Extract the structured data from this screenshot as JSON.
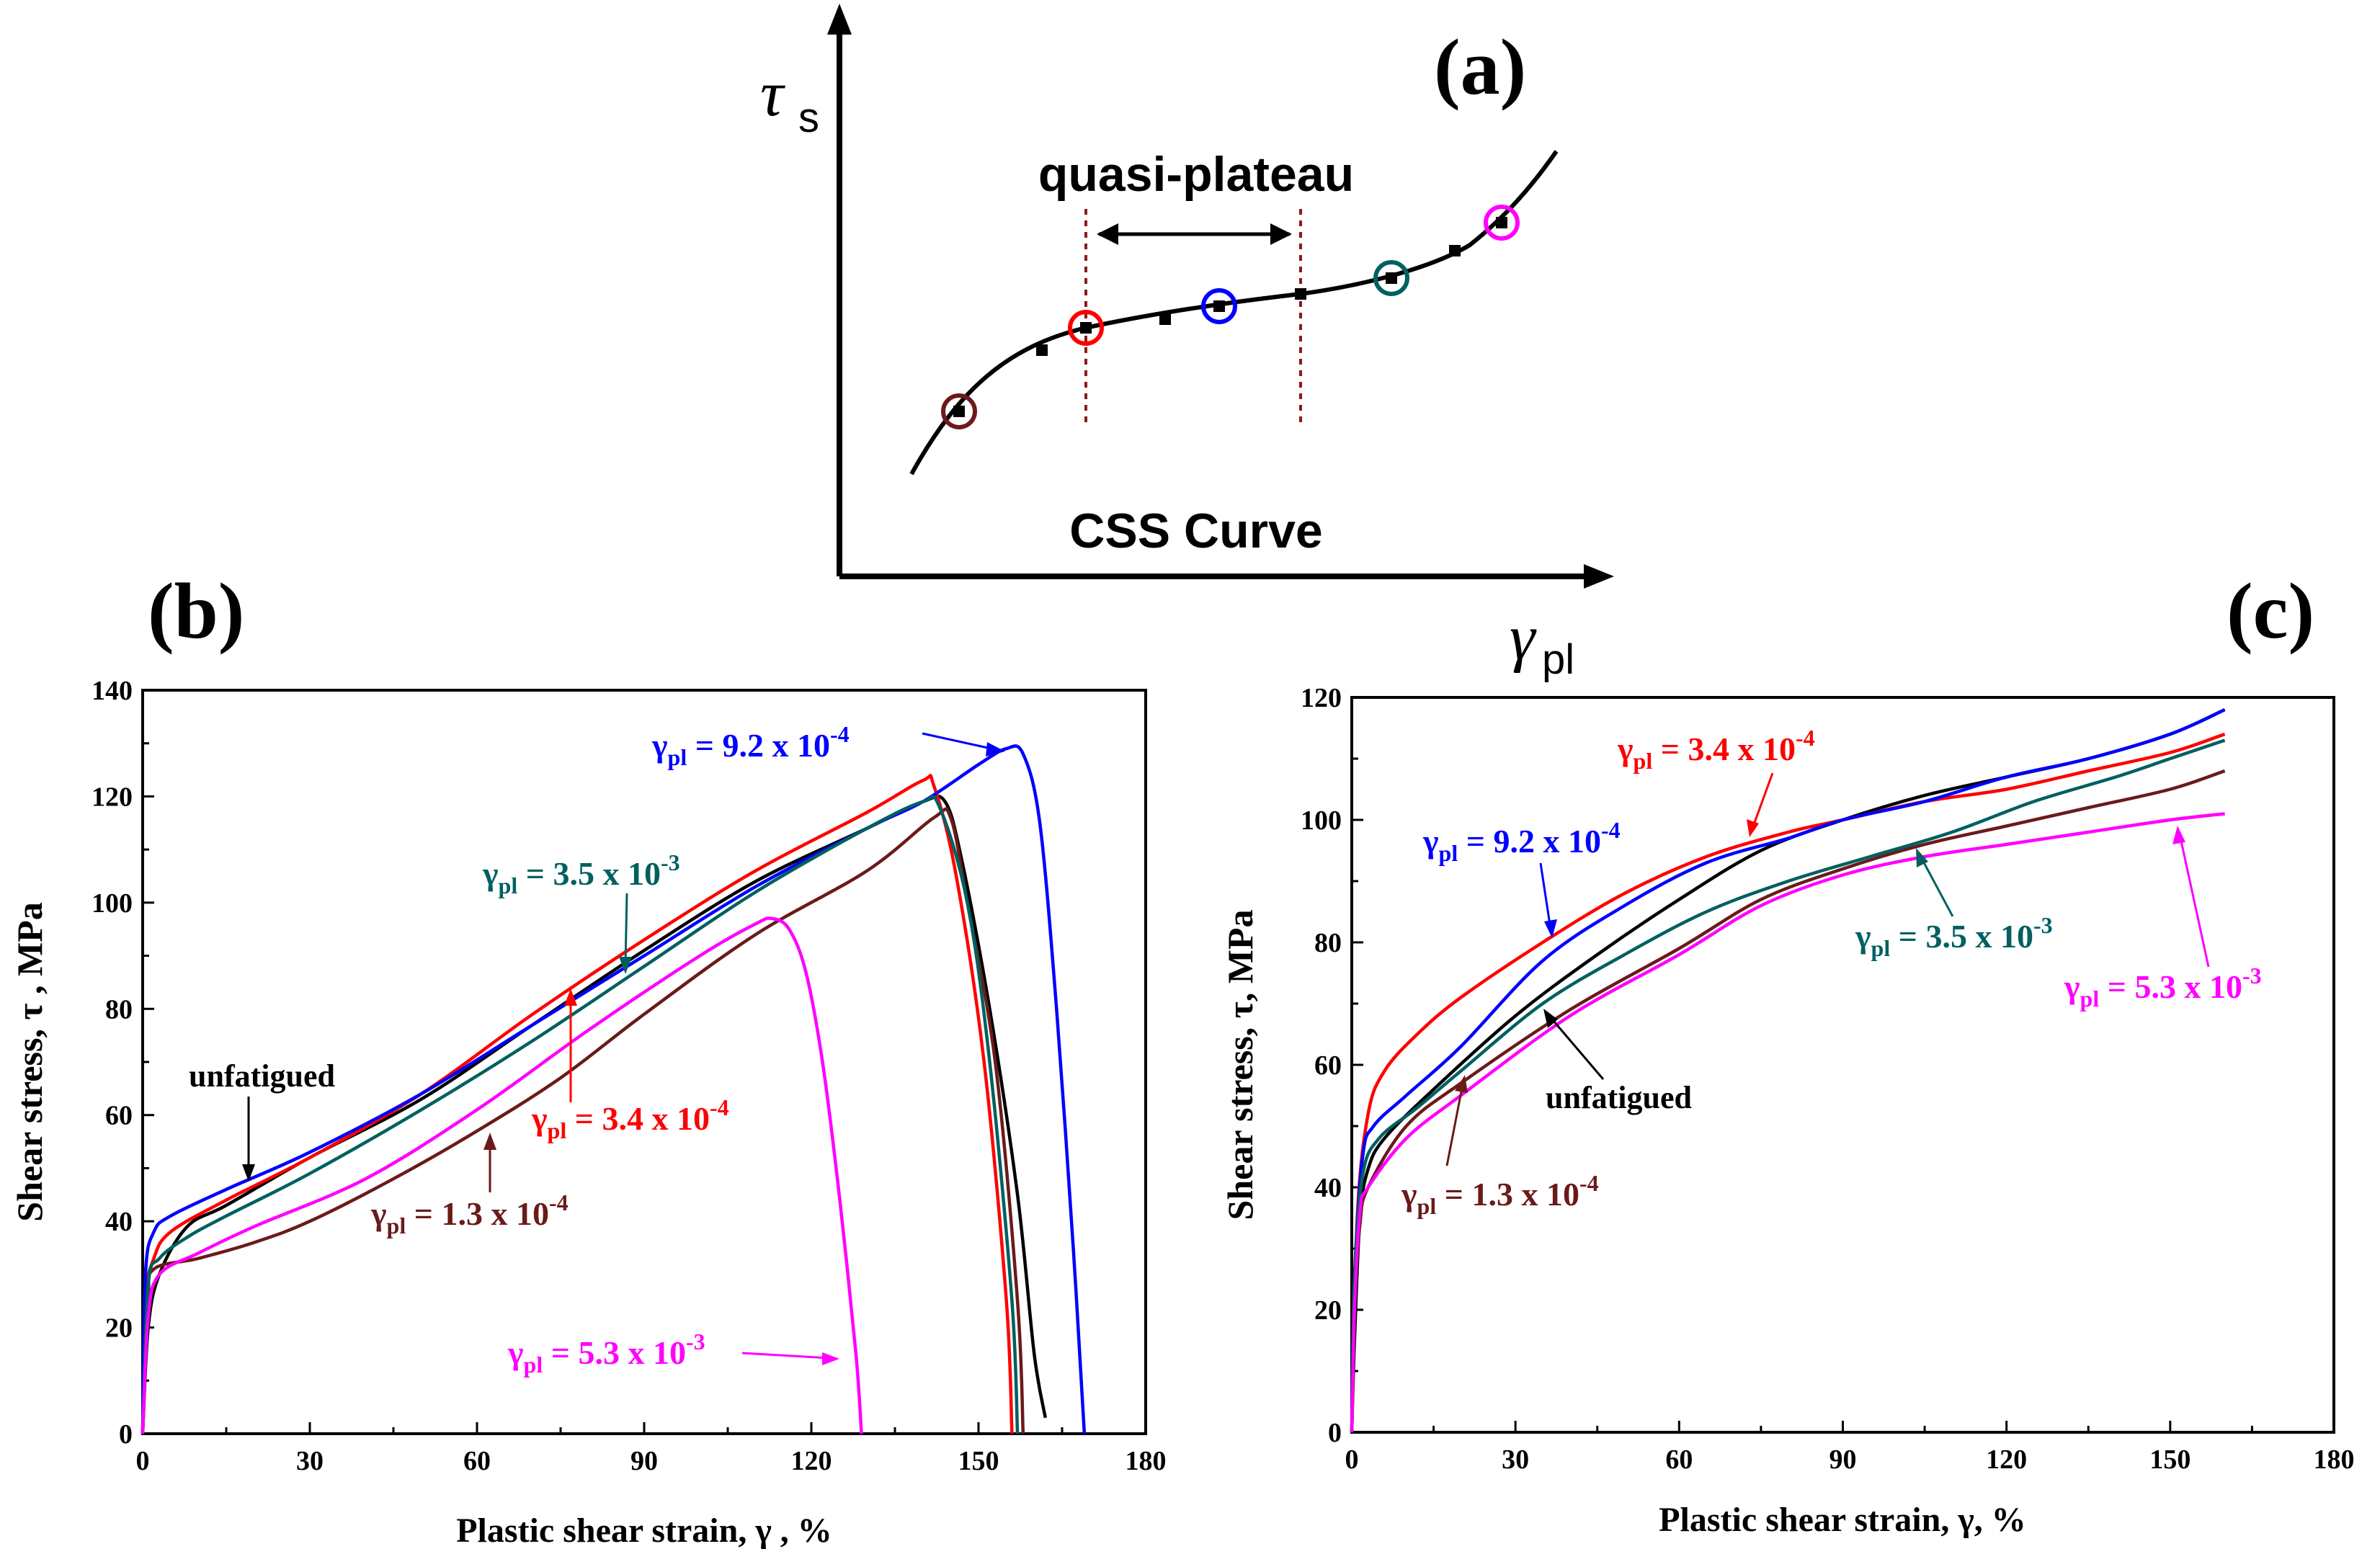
{
  "colors": {
    "unfatigued": "#000000",
    "g13e4": "#6b1a1a",
    "g34e4": "#ff0000",
    "g92e4": "#0000ff",
    "g35e3": "#006060",
    "g53e3": "#ff00ff"
  },
  "panel_a": {
    "label": "(a)",
    "y_symbol": "τ",
    "y_sub": "s",
    "x_symbol": "γ",
    "x_sub": "pl",
    "plateau_label": "quasi-plateau",
    "curve_label": "CSS Curve",
    "circle_colors": [
      "#6b1a1a",
      "#ff0000",
      "#0000ff",
      "#006060",
      "#ff00ff"
    ]
  },
  "panel_b": {
    "label": "(b)",
    "xlabel": "Plastic shear strain, γ , %",
    "ylabel": "Shear stress, τ , MPa",
    "annotations": {
      "g92e4": {
        "base": "9.2 x 10",
        "exp": "-4"
      },
      "g35e3": {
        "base": "3.5 x 10",
        "exp": "-3"
      },
      "g34e4": {
        "base": "3.4 x 10",
        "exp": "-4"
      },
      "g13e4": {
        "base": "1.3 x 10",
        "exp": "-4"
      },
      "g53e3": {
        "base": "5.3 x 10",
        "exp": "-3"
      },
      "unfatigued": "unfatigued"
    }
  },
  "panel_c": {
    "label": "(c)",
    "xlabel": "Plastic shear strain, γ, %",
    "ylabel": "Shear stress, τ, MPa",
    "annotations": {
      "g34e4": {
        "base": "3.4 x 10",
        "exp": "-4"
      },
      "g92e4": {
        "base": "9.2 x 10",
        "exp": "-4"
      },
      "g35e3": {
        "base": "3.5 x 10",
        "exp": "-3"
      },
      "g53e3": {
        "base": "5.3 x 10",
        "exp": "-3"
      },
      "g13e4": {
        "base": "1.3 x 10",
        "exp": "-4"
      },
      "unfatigued": "unfatigued"
    }
  },
  "chart_data": [
    {
      "type": "line",
      "panel": "(b)",
      "xlabel": "Plastic shear strain, γ , %",
      "ylabel": "Shear stress, τ , MPa",
      "xlim": [
        0,
        180
      ],
      "ylim": [
        0,
        140
      ],
      "xticks": [
        0,
        30,
        60,
        90,
        120,
        150,
        180
      ],
      "yticks": [
        0,
        20,
        40,
        60,
        80,
        100,
        120,
        140
      ],
      "series": [
        {
          "name": "unfatigued",
          "color": "#000000",
          "points": [
            [
              0,
              0
            ],
            [
              1,
              20
            ],
            [
              3,
              30
            ],
            [
              8,
              39
            ],
            [
              15,
              43
            ],
            [
              30,
              52
            ],
            [
              50,
              63
            ],
            [
              70,
              77
            ],
            [
              90,
              91
            ],
            [
              110,
              104
            ],
            [
              130,
              114
            ],
            [
              140,
              119
            ],
            [
              144,
              119
            ],
            [
              147,
              108
            ],
            [
              152,
              80
            ],
            [
              157,
              45
            ],
            [
              160,
              15
            ],
            [
              162,
              3
            ]
          ]
        },
        {
          "name": "γpl = 1.3 x 10-4",
          "color": "#6b1a1a",
          "points": [
            [
              0,
              0
            ],
            [
              1,
              25
            ],
            [
              2,
              31
            ],
            [
              10,
              33
            ],
            [
              20,
              36
            ],
            [
              30,
              40
            ],
            [
              45,
              48
            ],
            [
              60,
              57
            ],
            [
              75,
              67
            ],
            [
              90,
              79
            ],
            [
              110,
              94
            ],
            [
              130,
              106
            ],
            [
              142,
              116
            ],
            [
              145,
              116
            ],
            [
              148,
              100
            ],
            [
              153,
              70
            ],
            [
              157,
              25
            ],
            [
              158,
              0
            ]
          ]
        },
        {
          "name": "γpl = 3.4 x 10-4",
          "color": "#ff0000",
          "points": [
            [
              0,
              0
            ],
            [
              0.5,
              25
            ],
            [
              2,
              33
            ],
            [
              5,
              38
            ],
            [
              15,
              44
            ],
            [
              30,
              52
            ],
            [
              50,
              64
            ],
            [
              70,
              79
            ],
            [
              90,
              93
            ],
            [
              110,
              106
            ],
            [
              130,
              117
            ],
            [
              140,
              123
            ],
            [
              142,
              122
            ],
            [
              146,
              105
            ],
            [
              151,
              70
            ],
            [
              155,
              25
            ],
            [
              156,
              0
            ]
          ]
        },
        {
          "name": "γpl = 9.2 x 10-4",
          "color": "#0000ff",
          "points": [
            [
              0,
              0
            ],
            [
              0.5,
              30
            ],
            [
              2,
              38
            ],
            [
              5,
              41
            ],
            [
              15,
              46
            ],
            [
              30,
              53
            ],
            [
              50,
              64
            ],
            [
              70,
              77
            ],
            [
              90,
              90
            ],
            [
              110,
              103
            ],
            [
              130,
              114
            ],
            [
              140,
              119
            ],
            [
              150,
              126
            ],
            [
              155,
              129
            ],
            [
              158,
              128
            ],
            [
              161,
              115
            ],
            [
              164,
              80
            ],
            [
              167,
              35
            ],
            [
              169,
              0
            ]
          ]
        },
        {
          "name": "γpl = 3.5 x 10-3",
          "color": "#006060",
          "points": [
            [
              0,
              0
            ],
            [
              1,
              28
            ],
            [
              3,
              33
            ],
            [
              8,
              37
            ],
            [
              15,
              41
            ],
            [
              30,
              49
            ],
            [
              50,
              61
            ],
            [
              70,
              74
            ],
            [
              90,
              88
            ],
            [
              110,
              102
            ],
            [
              130,
              114
            ],
            [
              140,
              119
            ],
            [
              143,
              118
            ],
            [
              148,
              100
            ],
            [
              152,
              70
            ],
            [
              156,
              25
            ],
            [
              157,
              0
            ]
          ]
        },
        {
          "name": "γpl = 5.3 x 10-3",
          "color": "#ff00ff",
          "points": [
            [
              0,
              0
            ],
            [
              1,
              22
            ],
            [
              3,
              30
            ],
            [
              10,
              34
            ],
            [
              20,
              39
            ],
            [
              40,
              48
            ],
            [
              60,
              61
            ],
            [
              80,
              76
            ],
            [
              100,
              90
            ],
            [
              110,
              96
            ],
            [
              113,
              97
            ],
            [
              116,
              95
            ],
            [
              119,
              87
            ],
            [
              122,
              70
            ],
            [
              125,
              45
            ],
            [
              128,
              15
            ],
            [
              129,
              0
            ]
          ]
        }
      ]
    },
    {
      "type": "line",
      "panel": "(c)",
      "xlabel": "Plastic shear strain, γ, %",
      "ylabel": "Shear stress, τ, MPa",
      "xlim": [
        0,
        180
      ],
      "ylim": [
        0,
        120
      ],
      "xticks": [
        0,
        30,
        60,
        90,
        120,
        150,
        180
      ],
      "yticks": [
        0,
        20,
        40,
        60,
        80,
        100,
        120
      ],
      "series": [
        {
          "name": "unfatigued",
          "color": "#000000",
          "points": [
            [
              0,
              0
            ],
            [
              0.5,
              15
            ],
            [
              1.5,
              35
            ],
            [
              3,
              43
            ],
            [
              6,
              48
            ],
            [
              15,
              56
            ],
            [
              30,
              68
            ],
            [
              45,
              78
            ],
            [
              60,
              87
            ],
            [
              75,
              95
            ],
            [
              90,
              100
            ],
            [
              105,
              104
            ],
            [
              120,
              107
            ],
            [
              135,
              110
            ],
            [
              150,
              114
            ],
            [
              160,
              118
            ]
          ]
        },
        {
          "name": "γpl = 1.3 x 10-4",
          "color": "#6b1a1a",
          "points": [
            [
              0,
              0
            ],
            [
              0.5,
              20
            ],
            [
              1.5,
              34
            ],
            [
              3,
              40
            ],
            [
              10,
              50
            ],
            [
              20,
              57
            ],
            [
              40,
              69
            ],
            [
              60,
              79
            ],
            [
              75,
              87
            ],
            [
              90,
              92
            ],
            [
              105,
              96
            ],
            [
              120,
              99
            ],
            [
              135,
              102
            ],
            [
              150,
              105
            ],
            [
              160,
              108
            ]
          ]
        },
        {
          "name": "γpl = 3.4 x 10-4",
          "color": "#ff0000",
          "points": [
            [
              0,
              0
            ],
            [
              1,
              35
            ],
            [
              3,
              52
            ],
            [
              6,
              59
            ],
            [
              12,
              65
            ],
            [
              20,
              71
            ],
            [
              35,
              80
            ],
            [
              50,
              88
            ],
            [
              65,
              94
            ],
            [
              80,
              98
            ],
            [
              90,
              100
            ],
            [
              105,
              103
            ],
            [
              120,
              105
            ],
            [
              135,
              108
            ],
            [
              150,
              111
            ],
            [
              160,
              114
            ]
          ]
        },
        {
          "name": "γpl = 9.2 x 10-4",
          "color": "#0000ff",
          "points": [
            [
              0,
              0
            ],
            [
              0.5,
              25
            ],
            [
              2,
              45
            ],
            [
              4,
              50
            ],
            [
              10,
              55
            ],
            [
              20,
              63
            ],
            [
              35,
              77
            ],
            [
              50,
              86
            ],
            [
              65,
              93
            ],
            [
              80,
              97
            ],
            [
              90,
              100
            ],
            [
              105,
              103
            ],
            [
              120,
              107
            ],
            [
              135,
              110
            ],
            [
              150,
              114
            ],
            [
              160,
              118
            ]
          ]
        },
        {
          "name": "γpl = 3.5 x 10-3",
          "color": "#006060",
          "points": [
            [
              0,
              0
            ],
            [
              0.5,
              25
            ],
            [
              2,
              42
            ],
            [
              5,
              48
            ],
            [
              12,
              53
            ],
            [
              20,
              59
            ],
            [
              35,
              70
            ],
            [
              50,
              78
            ],
            [
              65,
              85
            ],
            [
              80,
              90
            ],
            [
              95,
              94
            ],
            [
              110,
              98
            ],
            [
              125,
              103
            ],
            [
              140,
              107
            ],
            [
              150,
              110
            ],
            [
              160,
              113
            ]
          ]
        },
        {
          "name": "γpl = 5.3 x 10-3",
          "color": "#ff00ff",
          "points": [
            [
              0,
              0
            ],
            [
              0.5,
              20
            ],
            [
              1.5,
              36
            ],
            [
              3,
              40
            ],
            [
              10,
              48
            ],
            [
              20,
              55
            ],
            [
              40,
              68
            ],
            [
              60,
              78
            ],
            [
              75,
              86
            ],
            [
              90,
              91
            ],
            [
              105,
              94
            ],
            [
              120,
              96
            ],
            [
              135,
              98
            ],
            [
              150,
              100
            ],
            [
              160,
              101
            ]
          ]
        }
      ]
    }
  ]
}
